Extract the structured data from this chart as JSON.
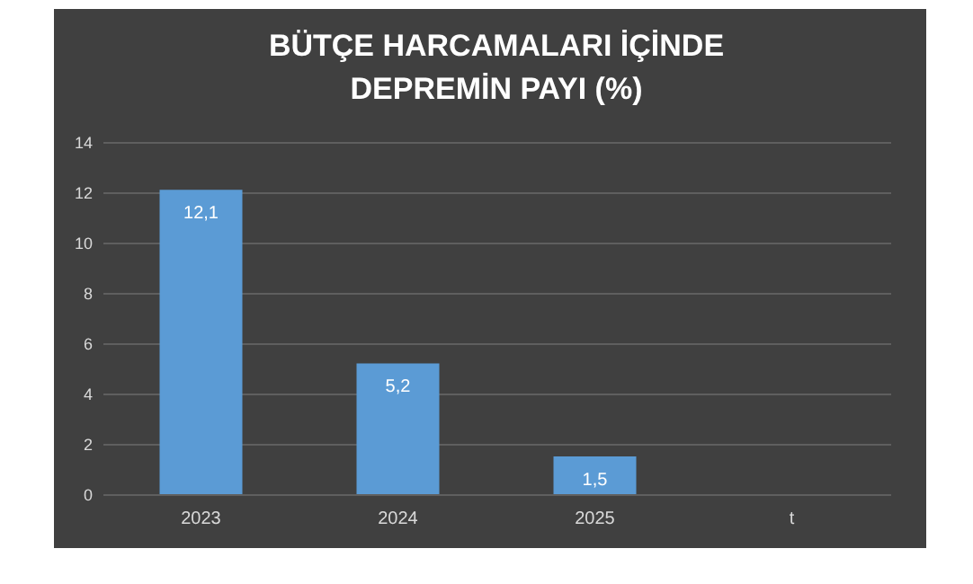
{
  "chart_data": {
    "type": "bar",
    "title": "BÜTÇE HARCAMALARI İÇİNDE\nDEPREMİN PAYI (%)",
    "categories": [
      "2023",
      "2024",
      "2025",
      "t"
    ],
    "values": [
      12.1,
      5.2,
      1.5,
      null
    ],
    "value_labels": [
      "12,1",
      "5,2",
      "1,5",
      null
    ],
    "color": "#5b9bd5",
    "ylim": [
      0,
      14
    ],
    "yticks": [
      0,
      2,
      4,
      6,
      8,
      10,
      12,
      14
    ],
    "grid": "y"
  }
}
